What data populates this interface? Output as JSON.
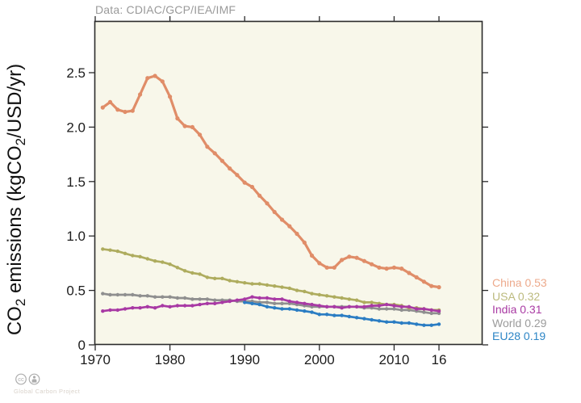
{
  "chart_data": {
    "type": "line",
    "title": "Data: CDIAC/GCP/IEA/IMF",
    "title_color": "#9a9a9a",
    "ylabel": "CO2 emissions (kgCO2/USD/yr)",
    "ylabel_parts": [
      {
        "text": "CO"
      },
      {
        "text": "2",
        "sub": true
      },
      {
        "text": " emissions (kgCO"
      },
      {
        "text": "2",
        "sub": true
      },
      {
        "text": "/USD/yr)"
      }
    ],
    "xlabel": "",
    "xlim": [
      1969.9,
      2021.8
    ],
    "ylim": [
      0,
      2.975
    ],
    "grid": false,
    "plot_background": "#f8f7ea",
    "axis_color": "#2b2b2b",
    "tick_label_color": "#1c1c1c",
    "legend_position": "right",
    "x_ticks": [
      {
        "value": 1970,
        "label": "1970"
      },
      {
        "value": 1980,
        "label": "1980"
      },
      {
        "value": 1990,
        "label": "1990"
      },
      {
        "value": 2000,
        "label": "2000"
      },
      {
        "value": 2010,
        "label": "2010"
      },
      {
        "value": 2016,
        "label": "16"
      }
    ],
    "y_ticks": [
      {
        "value": 0,
        "label": "0"
      },
      {
        "value": 0.5,
        "label": "0.5"
      },
      {
        "value": 1.0,
        "label": "1.0"
      },
      {
        "value": 1.5,
        "label": "1.5"
      },
      {
        "value": 2.0,
        "label": "2.0"
      },
      {
        "value": 2.5,
        "label": "2.5"
      }
    ],
    "series": [
      {
        "name": "World",
        "legend_label": "World 0.29",
        "end_value": 0.29,
        "color": "#8f8f8f",
        "legend_color": "#9b9b9b",
        "start_year": 1971,
        "values": [
          0.47,
          0.46,
          0.46,
          0.46,
          0.46,
          0.45,
          0.45,
          0.44,
          0.44,
          0.44,
          0.43,
          0.43,
          0.42,
          0.42,
          0.42,
          0.41,
          0.41,
          0.41,
          0.4,
          0.4,
          0.4,
          0.39,
          0.39,
          0.38,
          0.38,
          0.38,
          0.37,
          0.36,
          0.35,
          0.35,
          0.35,
          0.35,
          0.35,
          0.35,
          0.35,
          0.34,
          0.34,
          0.33,
          0.33,
          0.33,
          0.32,
          0.32,
          0.31,
          0.3,
          0.29,
          0.29
        ]
      },
      {
        "name": "USA",
        "legend_label": "USA 0.32",
        "end_value": 0.32,
        "color": "#aeac5e",
        "legend_color": "#bcba7e",
        "start_year": 1971,
        "values": [
          0.88,
          0.87,
          0.86,
          0.84,
          0.82,
          0.81,
          0.79,
          0.77,
          0.76,
          0.74,
          0.71,
          0.68,
          0.66,
          0.65,
          0.62,
          0.61,
          0.61,
          0.59,
          0.58,
          0.57,
          0.56,
          0.56,
          0.55,
          0.54,
          0.53,
          0.52,
          0.5,
          0.49,
          0.47,
          0.46,
          0.45,
          0.44,
          0.43,
          0.42,
          0.41,
          0.39,
          0.39,
          0.38,
          0.37,
          0.37,
          0.36,
          0.34,
          0.34,
          0.33,
          0.32,
          0.32
        ]
      },
      {
        "name": "EU28",
        "legend_label": "EU28 0.19",
        "end_value": 0.19,
        "color": "#2b7dc3",
        "legend_color": "#2e86c6",
        "start_year": 1990,
        "values": [
          0.39,
          0.38,
          0.37,
          0.35,
          0.34,
          0.33,
          0.33,
          0.32,
          0.31,
          0.3,
          0.28,
          0.28,
          0.27,
          0.27,
          0.26,
          0.25,
          0.24,
          0.23,
          0.22,
          0.21,
          0.21,
          0.2,
          0.2,
          0.19,
          0.18,
          0.18,
          0.19
        ]
      },
      {
        "name": "India",
        "legend_label": "India 0.31",
        "end_value": 0.31,
        "color": "#a839a4",
        "legend_color": "#a93ba3",
        "start_year": 1971,
        "values": [
          0.31,
          0.32,
          0.32,
          0.33,
          0.34,
          0.34,
          0.35,
          0.34,
          0.36,
          0.35,
          0.36,
          0.36,
          0.36,
          0.37,
          0.38,
          0.38,
          0.39,
          0.4,
          0.41,
          0.42,
          0.44,
          0.43,
          0.43,
          0.42,
          0.42,
          0.4,
          0.39,
          0.38,
          0.37,
          0.36,
          0.35,
          0.35,
          0.34,
          0.35,
          0.35,
          0.35,
          0.36,
          0.36,
          0.37,
          0.36,
          0.35,
          0.35,
          0.33,
          0.33,
          0.32,
          0.31
        ]
      },
      {
        "name": "China",
        "legend_label": "China 0.53",
        "end_value": 0.53,
        "color": "#e08d68",
        "legend_color": "#edaa8c",
        "start_year": 1971,
        "values": [
          2.18,
          2.23,
          2.16,
          2.14,
          2.15,
          2.3,
          2.45,
          2.47,
          2.42,
          2.28,
          2.08,
          2.01,
          2.0,
          1.93,
          1.82,
          1.76,
          1.69,
          1.62,
          1.56,
          1.49,
          1.45,
          1.37,
          1.3,
          1.22,
          1.15,
          1.09,
          1.02,
          0.94,
          0.82,
          0.75,
          0.71,
          0.71,
          0.78,
          0.81,
          0.8,
          0.77,
          0.74,
          0.71,
          0.7,
          0.71,
          0.7,
          0.66,
          0.62,
          0.58,
          0.54,
          0.53
        ]
      }
    ],
    "legend_order": [
      "China",
      "USA",
      "India",
      "World",
      "EU28"
    ]
  },
  "footer": {
    "credit": "Global Carbon Project",
    "icons": [
      "cc-icon",
      "attribution-icon"
    ]
  }
}
